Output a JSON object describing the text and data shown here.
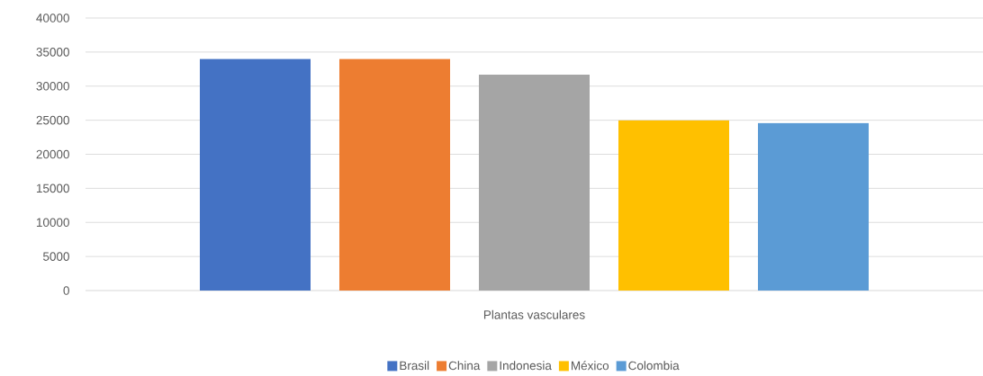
{
  "chart_data": {
    "type": "bar",
    "categories": [
      "Plantas vasculares"
    ],
    "series": [
      {
        "name": "Brasil",
        "color": "#4472c4",
        "values": [
          34000
        ]
      },
      {
        "name": "China",
        "color": "#ed7d31",
        "values": [
          34000
        ]
      },
      {
        "name": "Indonesia",
        "color": "#a5a5a5",
        "values": [
          31700
        ]
      },
      {
        "name": "México",
        "color": "#ffc000",
        "values": [
          25000
        ]
      },
      {
        "name": "Colombia",
        "color": "#5b9bd5",
        "values": [
          24600
        ]
      }
    ],
    "ylim": [
      0,
      40000
    ],
    "yticks": [
      0,
      5000,
      10000,
      15000,
      20000,
      25000,
      30000,
      35000,
      40000
    ],
    "grid": "y",
    "legend": "bottom"
  }
}
